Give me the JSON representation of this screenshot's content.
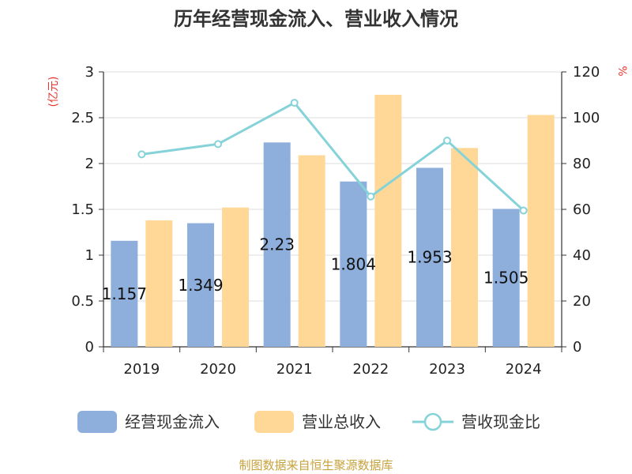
{
  "title": "历年经营现金流入、营业收入情况",
  "source_note": "制图数据来自恒生聚源数据库",
  "chart_data": {
    "type": "bar",
    "title": "历年经营现金流入、营业收入情况",
    "categories": [
      "2019",
      "2020",
      "2021",
      "2022",
      "2023",
      "2024"
    ],
    "series": [
      {
        "name": "经营现金流入",
        "type": "bar",
        "axis": "left",
        "color": "#8eaedb",
        "values": [
          1.157,
          1.349,
          2.23,
          1.804,
          1.953,
          1.505
        ]
      },
      {
        "name": "营业总收入",
        "type": "bar",
        "axis": "left",
        "color": "#ffd898",
        "values": [
          1.38,
          1.52,
          2.09,
          2.75,
          2.17,
          2.53
        ]
      },
      {
        "name": "营收现金比",
        "type": "line",
        "axis": "right",
        "color": "#85d3d8",
        "values": [
          84,
          88.5,
          106.5,
          65.6,
          90,
          59.5
        ]
      }
    ],
    "data_labels": [
      "1.157",
      "1.349",
      "2.23",
      "1.804",
      "1.953",
      "1.505"
    ],
    "y_left": {
      "label": "(亿元)",
      "ylim": [
        0,
        3
      ],
      "ticks": [
        "0",
        "0.5",
        "1",
        "1.5",
        "2",
        "2.5",
        "3"
      ]
    },
    "y_right": {
      "label": "%",
      "ylim": [
        0,
        120
      ],
      "ticks": [
        "0",
        "20",
        "40",
        "60",
        "80",
        "100",
        "120"
      ]
    },
    "grid": true,
    "legend_position": "bottom"
  }
}
